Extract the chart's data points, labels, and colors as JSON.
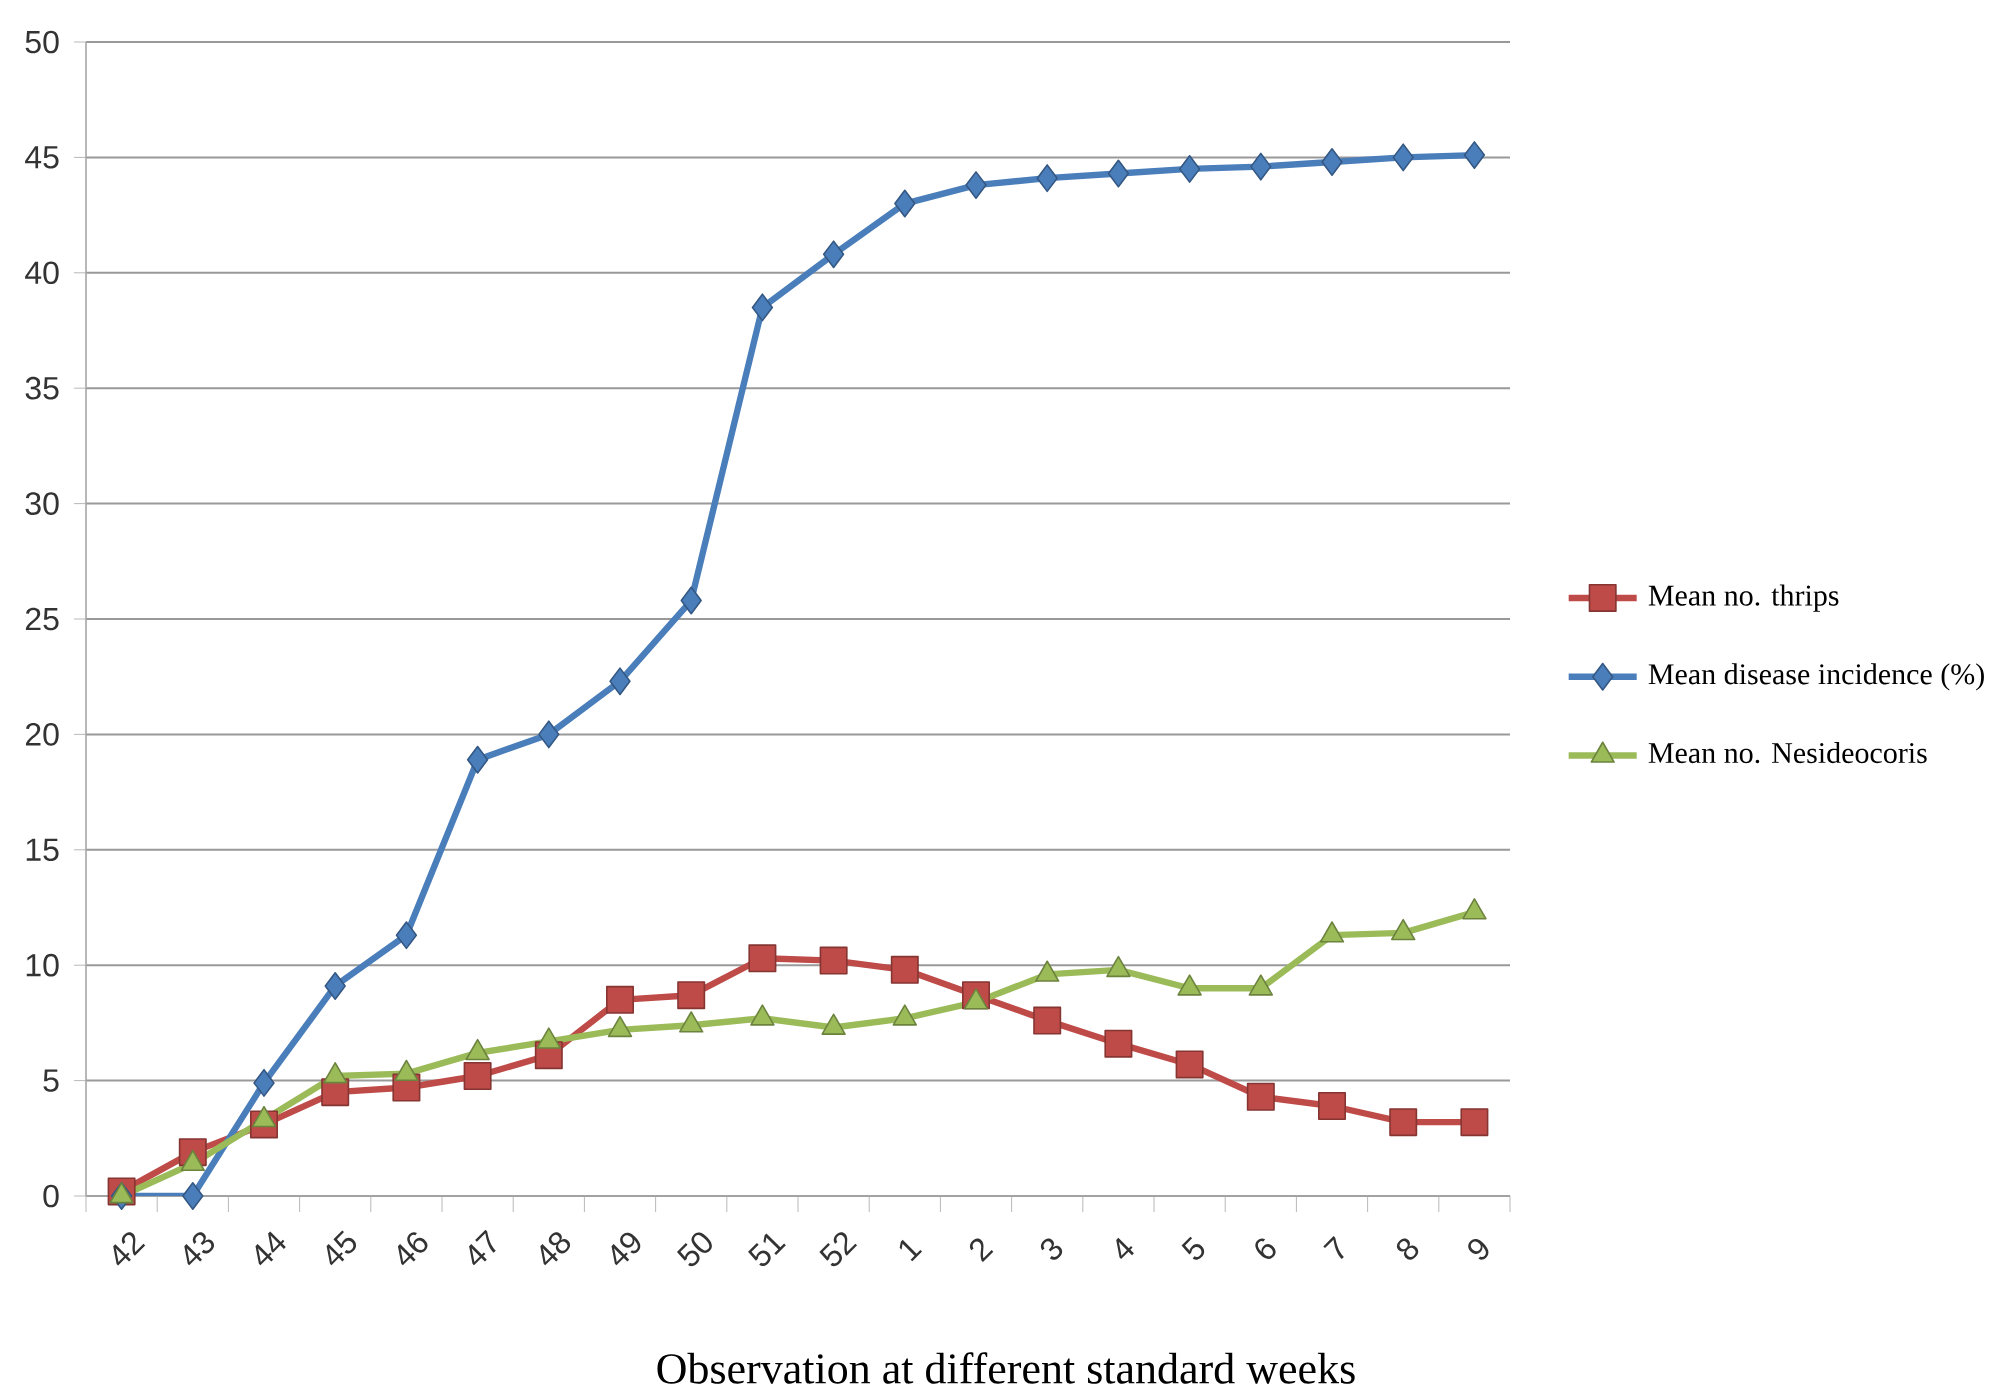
{
  "chart_data": {
    "type": "line",
    "xlabel": "Observation at different standard weeks",
    "categories": [
      "42",
      "43",
      "44",
      "45",
      "46",
      "47",
      "48",
      "49",
      "50",
      "51",
      "52",
      "1",
      "2",
      "3",
      "4",
      "5",
      "6",
      "7",
      "8",
      "9"
    ],
    "series": [
      {
        "name": "Mean no. thrips",
        "color": "#be4b48",
        "marker": "square",
        "values": [
          0.2,
          1.9,
          3.1,
          4.5,
          4.7,
          5.2,
          6.1,
          8.5,
          8.7,
          10.3,
          10.2,
          9.8,
          8.7,
          7.6,
          6.6,
          5.7,
          4.3,
          3.9,
          3.2,
          3.2
        ]
      },
      {
        "name": "Mean disease incidence (%)",
        "color": "#4a7ebb",
        "marker": "diamond",
        "values": [
          0,
          0,
          4.9,
          9.1,
          11.3,
          18.9,
          20,
          22.3,
          25.8,
          38.5,
          40.8,
          43,
          43.8,
          44.1,
          44.3,
          44.5,
          44.6,
          44.8,
          45,
          45.1
        ]
      },
      {
        "name": "Mean no. Nesideocoris",
        "color": "#9bbb59",
        "marker": "triangle",
        "values": [
          0,
          1.4,
          3.3,
          5.2,
          5.3,
          6.2,
          6.7,
          7.2,
          7.4,
          7.7,
          7.3,
          7.7,
          8.4,
          9.6,
          9.8,
          9.0,
          9.0,
          11.3,
          11.4,
          12.3
        ]
      }
    ],
    "ylim": [
      0,
      50
    ],
    "yticks": [
      0,
      5,
      10,
      15,
      20,
      25,
      30,
      35,
      40,
      45,
      50
    ],
    "grid": "y",
    "legend": "right",
    "line_style": "solid"
  }
}
